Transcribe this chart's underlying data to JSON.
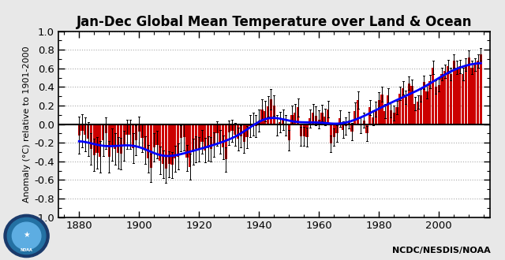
{
  "title": "Jan-Dec Global Mean Temperature over Land & Ocean",
  "ylabel": "Anomaly (°C) relative to 1901-2000",
  "xlabel": "",
  "xlim": [
    1873,
    2017
  ],
  "ylim": [
    -1.0,
    1.0
  ],
  "yticks": [
    -1.0,
    -0.8,
    -0.6,
    -0.4,
    -0.2,
    0.0,
    0.2,
    0.4,
    0.6,
    0.8,
    1.0
  ],
  "xticks": [
    1880,
    1900,
    1920,
    1940,
    1960,
    1980,
    2000
  ],
  "background_color": "#ffffff",
  "figure_bg": "#e8e8e8",
  "bar_color": "#cc0000",
  "smooth_color": "#0000ff",
  "grid_color": "#aaaaaa",
  "footer_text": "NCDC/NESDIS/NOAA",
  "title_fontsize": 12,
  "smooth_window": 13,
  "years": [
    1880,
    1881,
    1882,
    1883,
    1884,
    1885,
    1886,
    1887,
    1888,
    1889,
    1890,
    1891,
    1892,
    1893,
    1894,
    1895,
    1896,
    1897,
    1898,
    1899,
    1900,
    1901,
    1902,
    1903,
    1904,
    1905,
    1906,
    1907,
    1908,
    1909,
    1910,
    1911,
    1912,
    1913,
    1914,
    1915,
    1916,
    1917,
    1918,
    1919,
    1920,
    1921,
    1922,
    1923,
    1924,
    1925,
    1926,
    1927,
    1928,
    1929,
    1930,
    1931,
    1932,
    1933,
    1934,
    1935,
    1936,
    1937,
    1938,
    1939,
    1940,
    1941,
    1942,
    1943,
    1944,
    1945,
    1946,
    1947,
    1948,
    1949,
    1950,
    1951,
    1952,
    1953,
    1954,
    1955,
    1956,
    1957,
    1958,
    1959,
    1960,
    1961,
    1962,
    1963,
    1964,
    1965,
    1966,
    1967,
    1968,
    1969,
    1970,
    1971,
    1972,
    1973,
    1974,
    1975,
    1976,
    1977,
    1978,
    1979,
    1980,
    1981,
    1982,
    1983,
    1984,
    1985,
    1986,
    1987,
    1988,
    1989,
    1990,
    1991,
    1992,
    1993,
    1994,
    1995,
    1996,
    1997,
    1998,
    1999,
    2000,
    2001,
    2002,
    2003,
    2004,
    2005,
    2006,
    2007,
    2008,
    2009,
    2010,
    2011,
    2012,
    2013,
    2014
  ],
  "anomalies": [
    -0.12,
    -0.07,
    -0.11,
    -0.16,
    -0.27,
    -0.33,
    -0.31,
    -0.35,
    -0.17,
    -0.1,
    -0.35,
    -0.22,
    -0.27,
    -0.31,
    -0.32,
    -0.23,
    -0.11,
    -0.11,
    -0.26,
    -0.17,
    -0.08,
    -0.15,
    -0.28,
    -0.37,
    -0.47,
    -0.25,
    -0.22,
    -0.39,
    -0.43,
    -0.48,
    -0.43,
    -0.44,
    -0.37,
    -0.35,
    -0.15,
    -0.14,
    -0.36,
    -0.46,
    -0.3,
    -0.27,
    -0.27,
    -0.19,
    -0.28,
    -0.26,
    -0.27,
    -0.22,
    -0.1,
    -0.19,
    -0.25,
    -0.38,
    -0.09,
    -0.07,
    -0.11,
    -0.16,
    -0.13,
    -0.19,
    -0.14,
    -0.02,
    -0.0,
    -0.02,
    0.04,
    0.16,
    0.14,
    0.19,
    0.27,
    0.2,
    -0.01,
    0.02,
    0.05,
    -0.01,
    -0.17,
    0.1,
    0.12,
    0.18,
    -0.13,
    -0.13,
    -0.14,
    0.06,
    0.12,
    0.09,
    0.05,
    0.12,
    0.08,
    0.16,
    -0.21,
    -0.14,
    -0.1,
    0.06,
    -0.06,
    -0.02,
    0.04,
    -0.08,
    0.14,
    0.26,
    -0.01,
    0.04,
    -0.1,
    0.18,
    0.07,
    0.16,
    0.26,
    0.32,
    0.14,
    0.31,
    0.15,
    0.12,
    0.18,
    0.33,
    0.39,
    0.29,
    0.44,
    0.41,
    0.22,
    0.24,
    0.31,
    0.45,
    0.35,
    0.46,
    0.61,
    0.4,
    0.42,
    0.54,
    0.57,
    0.62,
    0.54,
    0.68,
    0.61,
    0.62,
    0.54,
    0.64,
    0.72,
    0.61,
    0.64,
    0.68,
    0.75
  ],
  "uncertainties": [
    0.2,
    0.18,
    0.18,
    0.18,
    0.17,
    0.17,
    0.17,
    0.17,
    0.17,
    0.17,
    0.17,
    0.17,
    0.17,
    0.17,
    0.17,
    0.16,
    0.16,
    0.16,
    0.16,
    0.16,
    0.16,
    0.15,
    0.15,
    0.15,
    0.15,
    0.15,
    0.15,
    0.15,
    0.15,
    0.15,
    0.14,
    0.14,
    0.14,
    0.14,
    0.14,
    0.14,
    0.14,
    0.14,
    0.14,
    0.14,
    0.13,
    0.13,
    0.13,
    0.13,
    0.13,
    0.13,
    0.13,
    0.13,
    0.13,
    0.13,
    0.13,
    0.12,
    0.12,
    0.12,
    0.12,
    0.12,
    0.12,
    0.12,
    0.12,
    0.12,
    0.12,
    0.11,
    0.11,
    0.11,
    0.11,
    0.11,
    0.11,
    0.11,
    0.11,
    0.11,
    0.11,
    0.1,
    0.1,
    0.1,
    0.1,
    0.1,
    0.1,
    0.1,
    0.1,
    0.1,
    0.1,
    0.09,
    0.09,
    0.09,
    0.09,
    0.09,
    0.09,
    0.09,
    0.09,
    0.09,
    0.09,
    0.09,
    0.09,
    0.09,
    0.09,
    0.08,
    0.08,
    0.08,
    0.08,
    0.08,
    0.08,
    0.08,
    0.08,
    0.08,
    0.08,
    0.08,
    0.07,
    0.07,
    0.07,
    0.07,
    0.07,
    0.07,
    0.07,
    0.07,
    0.07,
    0.07,
    0.07,
    0.07,
    0.07,
    0.07,
    0.07,
    0.07,
    0.07,
    0.07,
    0.07,
    0.07,
    0.07,
    0.07,
    0.07,
    0.07,
    0.07,
    0.07,
    0.07,
    0.07,
    0.07
  ]
}
